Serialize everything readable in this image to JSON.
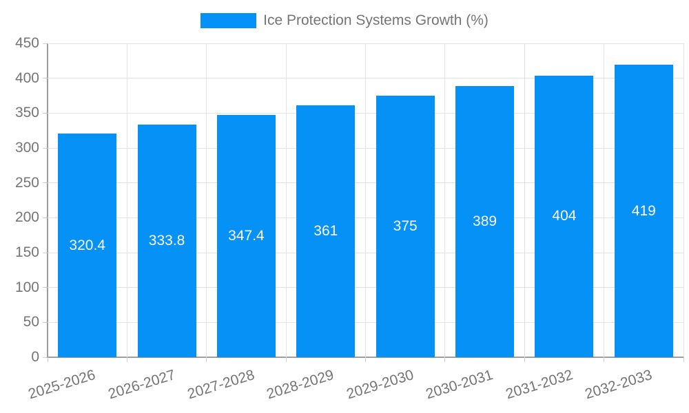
{
  "legend": {
    "label": "Ice Protection Systems Growth (%)"
  },
  "chart_data": {
    "type": "bar",
    "title": "",
    "xlabel": "",
    "ylabel": "",
    "categories": [
      "2025-2026",
      "2026-2027",
      "2027-2028",
      "2028-2029",
      "2029-2030",
      "2030-2031",
      "2031-2032",
      "2032-2033"
    ],
    "values": [
      320.4,
      333.8,
      347.4,
      361,
      375,
      389,
      404,
      419
    ],
    "value_labels": [
      "320.4",
      "333.8",
      "347.4",
      "361",
      "375",
      "389",
      "404",
      "419"
    ],
    "series_name": "Ice Protection Systems Growth (%)",
    "ylim": [
      0,
      450
    ],
    "ytick_step": 50,
    "ytick_labels": [
      "0",
      "50",
      "100",
      "150",
      "200",
      "250",
      "300",
      "350",
      "400",
      "450"
    ],
    "grid": true,
    "legend_position": "top-center",
    "x_label_rotation_deg": -17,
    "colors": {
      "bar": "#0691f7",
      "bar_value_text": "#ffffff",
      "axis_text": "#757575",
      "grid_line": "#e3e3e3",
      "axis_line": "#9e9e9e",
      "tick_mark": "#cfcfcf",
      "background": "#ffffff"
    }
  }
}
